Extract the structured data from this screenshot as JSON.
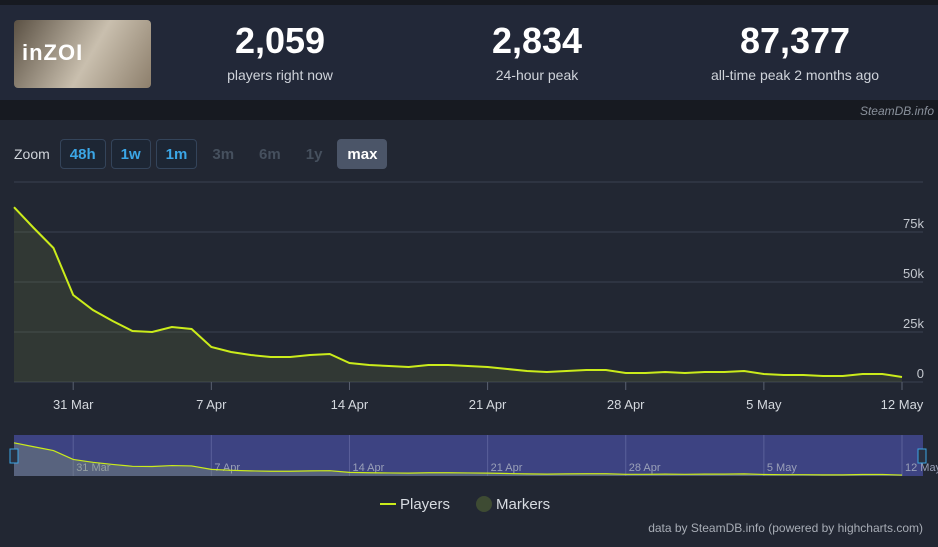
{
  "header": {
    "logo_text": "inZOI",
    "stats": [
      {
        "value": "2,059",
        "label": "players right now"
      },
      {
        "value": "2,834",
        "label": "24-hour peak"
      },
      {
        "value": "87,377",
        "label": "all-time peak 2 months ago"
      }
    ],
    "watermark": "SteamDB.info"
  },
  "zoom": {
    "label": "Zoom",
    "buttons": [
      {
        "text": "48h",
        "state": "enabled"
      },
      {
        "text": "1w",
        "state": "enabled"
      },
      {
        "text": "1m",
        "state": "enabled"
      },
      {
        "text": "3m",
        "state": "disabled"
      },
      {
        "text": "6m",
        "state": "disabled"
      },
      {
        "text": "1y",
        "state": "disabled"
      },
      {
        "text": "max",
        "state": "selected"
      }
    ]
  },
  "chart_data": {
    "type": "line",
    "categories": [
      null,
      null,
      null,
      "31 Mar",
      null,
      null,
      null,
      null,
      null,
      null,
      "7 Apr",
      null,
      null,
      null,
      null,
      null,
      null,
      "14 Apr",
      null,
      null,
      null,
      null,
      null,
      null,
      "21 Apr",
      null,
      null,
      null,
      null,
      null,
      null,
      "28 Apr",
      null,
      null,
      null,
      null,
      null,
      null,
      "5 May",
      null,
      null,
      null,
      null,
      null,
      null,
      "12 May"
    ],
    "series": [
      {
        "name": "Players",
        "color": "#cbec1b",
        "values": [
          87377,
          77000,
          67000,
          43500,
          36000,
          30500,
          25500,
          25000,
          27500,
          26500,
          17500,
          15000,
          13500,
          12500,
          12500,
          13500,
          14000,
          9500,
          8500,
          8000,
          7500,
          8500,
          8500,
          8000,
          7500,
          6500,
          5500,
          5000,
          5500,
          6000,
          6000,
          4500,
          4500,
          5000,
          4500,
          5000,
          5000,
          5500,
          4000,
          3500,
          3500,
          3000,
          3000,
          4000,
          4000,
          2500
        ]
      }
    ],
    "markers": {
      "name": "Markers",
      "color": "#3e4b33"
    },
    "ylim": [
      0,
      100000
    ],
    "yticks": [
      {
        "value": 0,
        "label": "0"
      },
      {
        "value": 25000,
        "label": "25k"
      },
      {
        "value": 50000,
        "label": "50k"
      },
      {
        "value": 75000,
        "label": "75k"
      }
    ],
    "grid": true,
    "credit": "data by SteamDB.info (powered by highcharts.com)"
  }
}
